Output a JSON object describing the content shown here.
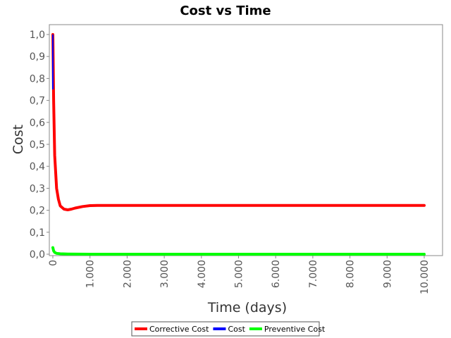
{
  "chart_data": {
    "type": "line",
    "title": "Cost vs Time",
    "xlabel": "Time (days)",
    "ylabel": "Cost",
    "xlim": [
      0,
      10000
    ],
    "ylim": [
      0,
      1.0
    ],
    "x_ticks": [
      0,
      1000,
      2000,
      3000,
      4000,
      5000,
      6000,
      7000,
      8000,
      9000,
      10000
    ],
    "x_tick_labels": [
      "0",
      "1.000",
      "2.000",
      "3.000",
      "4.000",
      "5.000",
      "6.000",
      "7.000",
      "8.000",
      "9.000",
      "10.000"
    ],
    "y_ticks": [
      0,
      0.1,
      0.2,
      0.3,
      0.4,
      0.5,
      0.6,
      0.7,
      0.8,
      0.9,
      1.0
    ],
    "y_tick_labels": [
      "0,0",
      "0,1",
      "0,2",
      "0,3",
      "0,4",
      "0,5",
      "0,6",
      "0,7",
      "0,8",
      "0,9",
      "1,0"
    ],
    "grid": false,
    "legend_position": "bottom",
    "series": [
      {
        "name": "Corrective Cost",
        "color": "#ff0000",
        "x": [
          0,
          20,
          50,
          100,
          150,
          200,
          300,
          400,
          500,
          600,
          800,
          1000,
          1200,
          2000,
          4000,
          6000,
          8000,
          10000
        ],
        "y": [
          1.0,
          0.7,
          0.45,
          0.3,
          0.25,
          0.22,
          0.205,
          0.202,
          0.205,
          0.21,
          0.217,
          0.221,
          0.222,
          0.222,
          0.222,
          0.222,
          0.222,
          0.222
        ]
      },
      {
        "name": "Cost",
        "color": "#0000ff",
        "x": [
          0,
          20,
          50,
          100,
          150,
          200,
          300,
          400,
          500,
          600,
          800,
          1000,
          1200,
          2000,
          4000,
          6000,
          8000,
          10000
        ],
        "y": [
          1.0,
          0.7,
          0.45,
          0.3,
          0.25,
          0.22,
          0.205,
          0.202,
          0.205,
          0.21,
          0.217,
          0.221,
          0.222,
          0.222,
          0.222,
          0.222,
          0.222,
          0.222
        ]
      },
      {
        "name": "Preventive Cost",
        "color": "#00ff00",
        "x": [
          0,
          20,
          50,
          100,
          200,
          400,
          1000,
          10000
        ],
        "y": [
          0.03,
          0.015,
          0.008,
          0.004,
          0.002,
          0.001,
          0.0,
          0.0
        ]
      }
    ]
  }
}
